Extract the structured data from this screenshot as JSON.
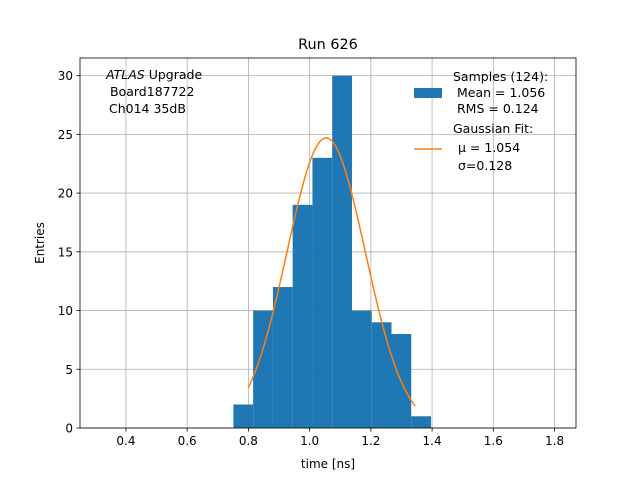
{
  "chart_data": {
    "type": "bar",
    "title": "Run 626",
    "xlabel": "time [ns]",
    "ylabel": "Entries",
    "xlim": [
      0.25,
      1.87
    ],
    "ylim": [
      0,
      31.5
    ],
    "xticks": [
      0.4,
      0.6,
      0.8,
      1.0,
      1.2,
      1.4,
      1.6,
      1.8
    ],
    "xtick_labels": [
      "0.4",
      "0.6",
      "0.8",
      "1.0",
      "1.2",
      "1.4",
      "1.6",
      "1.8"
    ],
    "yticks": [
      0,
      5,
      10,
      15,
      20,
      25,
      30
    ],
    "ytick_labels": [
      "0",
      "5",
      "10",
      "15",
      "20",
      "25",
      "30"
    ],
    "grid": true,
    "annotation": {
      "experiment": "ATLAS",
      "experiment_suffix": " Upgrade",
      "board": "Board187722",
      "channel": "Ch014 35dB"
    },
    "histogram": {
      "name": "Samples (124):",
      "color": "#1f77b4",
      "bin_edges": [
        0.751,
        0.8155,
        0.8801,
        0.9446,
        1.0092,
        1.0737,
        1.1383,
        1.2028,
        1.2674,
        1.3319,
        1.3965
      ],
      "counts": [
        2,
        10,
        12,
        19,
        23,
        30,
        10,
        9,
        8,
        1
      ]
    },
    "fit": {
      "name": "Gaussian Fit:",
      "color": "#ff7f0e",
      "mu": 1.054,
      "sigma": 0.128,
      "amplitude": 24.7,
      "x_range": [
        0.8,
        1.345
      ]
    },
    "legend": {
      "placement": "top-right",
      "entries": [
        {
          "key": "hist",
          "lines": [
            "Samples (124):",
            " Mean = 1.056",
            " RMS = 0.124"
          ]
        },
        {
          "key": "fit",
          "lines": [
            "Gaussian Fit:",
            "μ = 1.054",
            "σ=0.128"
          ]
        }
      ]
    }
  }
}
